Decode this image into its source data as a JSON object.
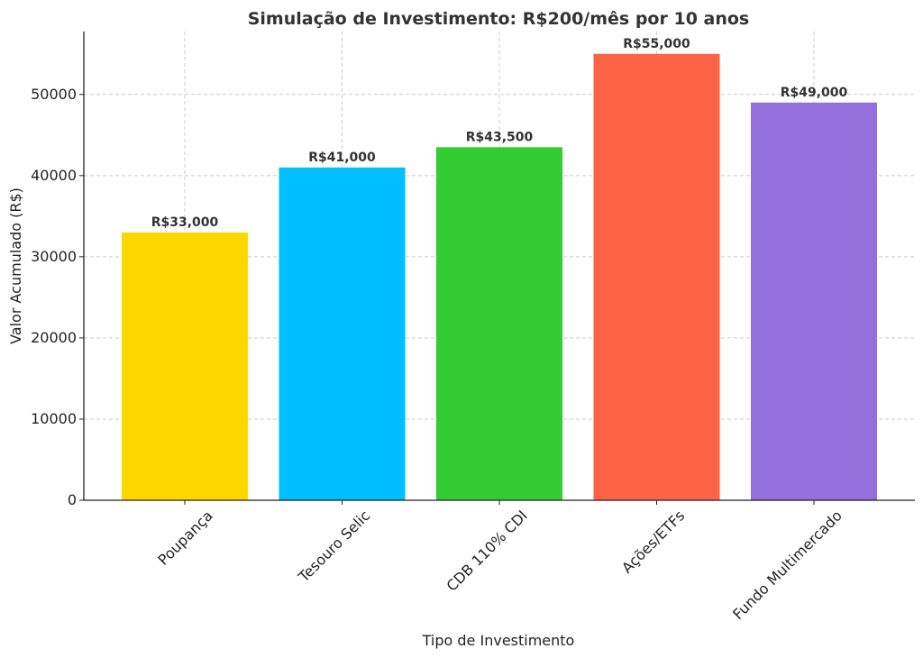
{
  "chart_data": {
    "type": "bar",
    "title": "Simulação de Investimento: R$200/mês por 10 anos",
    "xlabel": "Tipo de Investimento",
    "ylabel": "Valor Acumulado (R$)",
    "categories": [
      "Poupança",
      "Tesouro Selic",
      "CDB 110% CDI",
      "Ações/ETFs",
      "Fundo Multimercado"
    ],
    "values": [
      33000,
      41000,
      43500,
      55000,
      49000
    ],
    "data_labels": [
      "R$33,000",
      "R$41,000",
      "R$43,500",
      "R$55,000",
      "R$49,000"
    ],
    "colors": [
      "#FFD700",
      "#00BFFF",
      "#32CD32",
      "#FF6347",
      "#9370DB"
    ],
    "yticks": [
      0,
      10000,
      20000,
      30000,
      40000,
      50000
    ],
    "ylim": [
      0,
      57750
    ],
    "grid": true,
    "xtick_rotation": 45
  }
}
